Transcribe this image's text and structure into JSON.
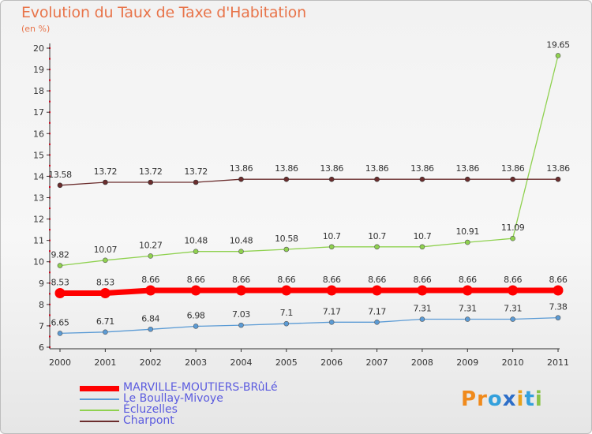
{
  "header": {
    "title": "Evolution du Taux de Taxe d'Habitation",
    "unit": "(en %)"
  },
  "logo": {
    "text": "Proxiti",
    "letter_colors": [
      "#f08a1c",
      "#f08a1c",
      "#33a0dc",
      "#2d6ec8",
      "#e8a21c",
      "#33a0dc",
      "#8bc34a"
    ]
  },
  "chart_data": {
    "type": "line",
    "title": "Evolution du Taux de Taxe d'Habitation",
    "ylabel": "(en %)",
    "xlabel": "",
    "categories": [
      "2000",
      "2001",
      "2002",
      "2003",
      "2004",
      "2005",
      "2006",
      "2007",
      "2008",
      "2009",
      "2010",
      "2011"
    ],
    "y_ticks": [
      6,
      7,
      8,
      9,
      10,
      11,
      12,
      13,
      14,
      15,
      16,
      17,
      18,
      19,
      20
    ],
    "ylim": [
      6,
      20
    ],
    "grid": false,
    "legend_position": "bottom-left",
    "series": [
      {
        "name": "MARVILLE-MOUTIERS-BRûLé",
        "color": "#ff0000",
        "values": [
          8.53,
          8.53,
          8.66,
          8.66,
          8.66,
          8.66,
          8.66,
          8.66,
          8.66,
          8.66,
          8.66,
          8.66
        ],
        "labels": [
          "8.53",
          "8.53",
          "8.66",
          "8.66",
          "8.66",
          "8.66",
          "8.66",
          "8.66",
          "8.66",
          "8.66",
          "8.66",
          "8.66"
        ]
      },
      {
        "name": "Le Boullay-Mivoye",
        "color": "#5b9bd5",
        "values": [
          6.65,
          6.71,
          6.84,
          6.98,
          7.03,
          7.1,
          7.17,
          7.17,
          7.31,
          7.31,
          7.31,
          7.38
        ],
        "labels": [
          "6.65",
          "6.71",
          "6.84",
          "6.98",
          "7.03",
          "7.1",
          "7.17",
          "7.17",
          "7.31",
          "7.31",
          "7.31",
          "7.38"
        ]
      },
      {
        "name": "Écluzelles",
        "color": "#8fd14f",
        "values": [
          9.82,
          10.07,
          10.27,
          10.48,
          10.48,
          10.58,
          10.7,
          10.7,
          10.7,
          10.91,
          11.09,
          19.65
        ],
        "labels": [
          "9.82",
          "10.07",
          "10.27",
          "10.48",
          "10.48",
          "10.58",
          "10.7",
          "10.7",
          "10.7",
          "10.91",
          "11.09",
          "19.65"
        ]
      },
      {
        "name": "Charpont",
        "color": "#6b2d2d",
        "values": [
          13.58,
          13.72,
          13.72,
          13.72,
          13.86,
          13.86,
          13.86,
          13.86,
          13.86,
          13.86,
          13.86,
          13.86
        ],
        "labels": [
          "13.58",
          "13.72",
          "13.72",
          "13.72",
          "13.86",
          "13.86",
          "13.86",
          "13.86",
          "13.86",
          "13.86",
          "13.86",
          "13.86"
        ]
      }
    ]
  }
}
